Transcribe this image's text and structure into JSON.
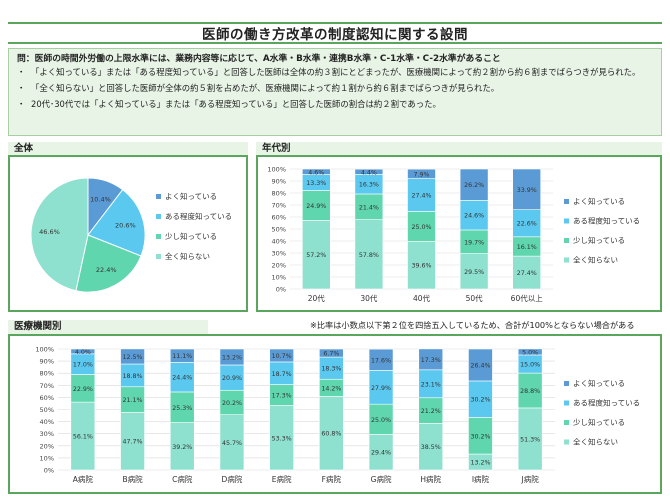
{
  "title": "医師の働き方改革の制度認知に関する設問",
  "question": "問：医師の時間外労働の上限水準には、業務内容等に応じて、A水準・B水準・連携B水準・C-1水準・C-2水準があること",
  "bullets": [
    "「よく知っている」または「ある程度知っている」と回答した医師は全体の約３割にとどまったが、医療機関によって約２割から約６割までばらつきが見られた。",
    "「全く知らない」と回答した医師が全体の約５割を占めたが、医療機関によって約１割から約６割までばらつきが見られた。",
    "20代･30代では「よく知っている」または「ある程度知っている」と回答した医師の割合は約２割であった。"
  ],
  "note": "※比率は小数点以下第２位を四捨五入しているため、合計が100%とならない場合がある",
  "colors": {
    "よく知っている": "#5b9bd5",
    "ある程度知っている": "#5bc8f0",
    "少し知っている": "#5fd6ae",
    "全く知らない": "#8ee0cf",
    "panel_border": "#5aa65c"
  },
  "legend_labels": [
    "よく知っている",
    "ある程度知っている",
    "少し知っている",
    "全く知らない"
  ],
  "chart_data": [
    {
      "panel": "全体",
      "type": "pie",
      "categories": [
        "よく知っている",
        "ある程度知っている",
        "少し知っている",
        "全く知らない"
      ],
      "values": [
        10.4,
        20.6,
        22.4,
        46.6
      ],
      "legend_position": "right"
    },
    {
      "panel": "年代別",
      "type": "bar",
      "stacked": true,
      "categories": [
        "20代",
        "30代",
        "40代",
        "50代",
        "60代以上"
      ],
      "series": [
        {
          "name": "全く知らない",
          "values": [
            57.2,
            57.8,
            39.6,
            29.5,
            27.4
          ]
        },
        {
          "name": "少し知っている",
          "values": [
            24.9,
            21.4,
            25.0,
            19.7,
            16.1
          ]
        },
        {
          "name": "ある程度知っている",
          "values": [
            13.3,
            16.3,
            27.4,
            24.6,
            22.6
          ]
        },
        {
          "name": "よく知っている",
          "values": [
            4.6,
            4.4,
            7.9,
            26.2,
            33.9
          ]
        }
      ],
      "ylim": [
        0,
        100
      ],
      "yticks": [
        "0%",
        "10%",
        "20%",
        "30%",
        "40%",
        "50%",
        "60%",
        "70%",
        "80%",
        "90%",
        "100%"
      ],
      "legend_position": "right"
    },
    {
      "panel": "医療機関別",
      "type": "bar",
      "stacked": true,
      "categories": [
        "A病院",
        "B病院",
        "C病院",
        "D病院",
        "E病院",
        "F病院",
        "G病院",
        "H病院",
        "I病院",
        "J病院"
      ],
      "series": [
        {
          "name": "全く知らない",
          "values": [
            56.1,
            47.7,
            39.2,
            45.7,
            53.3,
            60.8,
            29.4,
            38.5,
            13.2,
            51.3
          ]
        },
        {
          "name": "少し知っている",
          "values": [
            22.9,
            21.1,
            25.3,
            20.2,
            17.3,
            14.2,
            25.0,
            21.2,
            30.2,
            28.8
          ]
        },
        {
          "name": "ある程度知っている",
          "values": [
            17.0,
            18.8,
            24.4,
            20.9,
            18.7,
            18.3,
            27.9,
            23.1,
            30.2,
            15.0
          ]
        },
        {
          "name": "よく知っている",
          "values": [
            4.0,
            12.5,
            11.1,
            13.2,
            10.7,
            6.7,
            17.6,
            17.3,
            26.4,
            5.0
          ]
        }
      ],
      "ylim": [
        0,
        100
      ],
      "yticks": [
        "0%",
        "10%",
        "20%",
        "30%",
        "40%",
        "50%",
        "60%",
        "70%",
        "80%",
        "90%",
        "100%"
      ],
      "legend_position": "right"
    }
  ]
}
